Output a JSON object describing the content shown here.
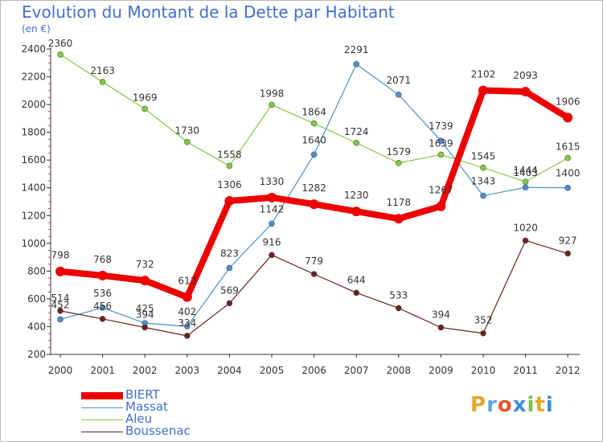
{
  "chart_data": {
    "type": "line",
    "title": "Evolution du Montant de la Dette par Habitant",
    "subtitle": "(en €)",
    "x": [
      "2000",
      "2001",
      "2002",
      "2003",
      "2004",
      "2005",
      "2006",
      "2007",
      "2008",
      "2009",
      "2010",
      "2011",
      "2012"
    ],
    "yticks": [
      "200",
      "400",
      "600",
      "800",
      "1000",
      "1200",
      "1400",
      "1600",
      "1800",
      "2000",
      "2200",
      "2400"
    ],
    "ylim": [
      200,
      2400
    ],
    "grid": false,
    "legend_position": "bottom-left",
    "series": [
      {
        "name": "BIERT",
        "color": "#ee0000",
        "values": [
          798,
          768,
          732,
          613,
          1306,
          1330,
          1282,
          1230,
          1178,
          1267,
          2102,
          2093,
          1906
        ]
      },
      {
        "name": "Massat",
        "color": "#4a90d0",
        "values": [
          452,
          536,
          425,
          402,
          823,
          1142,
          1640,
          2291,
          2071,
          1739,
          1343,
          1403,
          1400
        ]
      },
      {
        "name": "Aleu",
        "color": "#7ccc3c",
        "values": [
          2360,
          2163,
          1969,
          1730,
          1558,
          1998,
          1864,
          1724,
          1579,
          1639,
          1545,
          1444,
          1615
        ]
      },
      {
        "name": "Boussenac",
        "color": "#6b1f1f",
        "values": [
          514,
          456,
          394,
          334,
          569,
          916,
          779,
          644,
          533,
          394,
          352,
          1020,
          927
        ]
      }
    ]
  },
  "logo": {
    "letters": [
      "P",
      "r",
      "o",
      "x",
      "i",
      "t",
      "i"
    ]
  }
}
